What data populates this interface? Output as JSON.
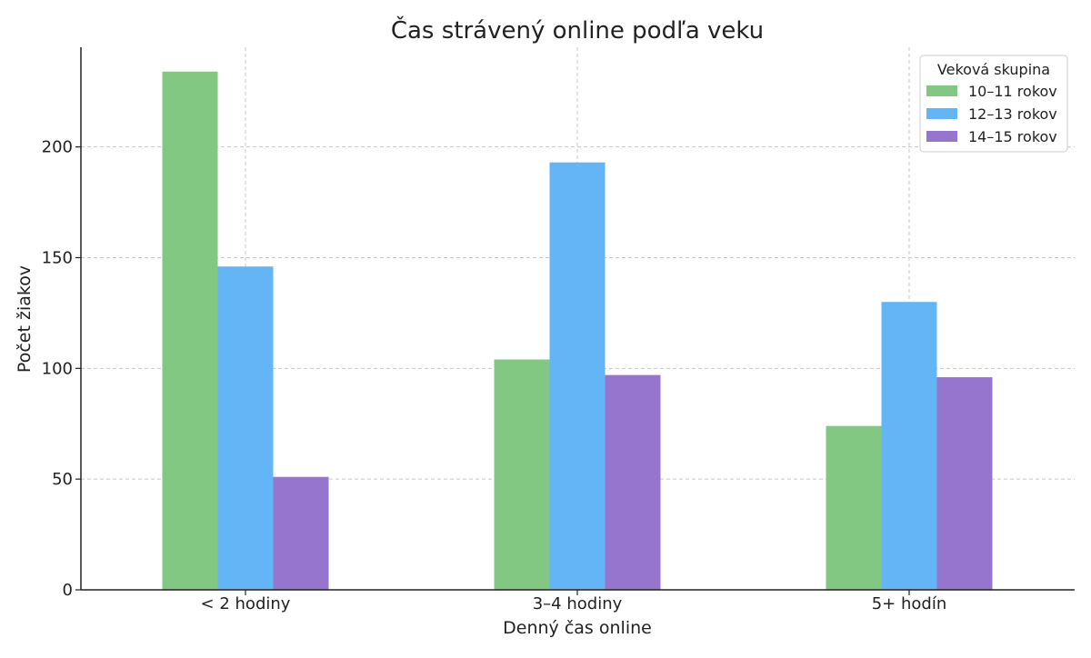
{
  "chart_data": {
    "type": "bar",
    "title": "Čas strávený online podľa veku",
    "xlabel": "Denný čas online",
    "ylabel": "Počet žiakov",
    "categories": [
      "< 2 hodiny",
      "3–4 hodiny",
      "5+ hodín"
    ],
    "series": [
      {
        "name": "10–11 rokov",
        "color": "#82c782",
        "values": [
          234,
          104,
          74
        ]
      },
      {
        "name": "12–13 rokov",
        "color": "#64b5f6",
        "values": [
          146,
          193,
          130
        ]
      },
      {
        "name": "14–15 rokov",
        "color": "#9575cd",
        "values": [
          51,
          97,
          96
        ]
      }
    ],
    "ylim": [
      0,
      245
    ],
    "yticks": [
      0,
      50,
      100,
      150,
      200
    ],
    "grid": true,
    "legend": {
      "title": "Veková skupina",
      "placement": "top-right"
    }
  }
}
